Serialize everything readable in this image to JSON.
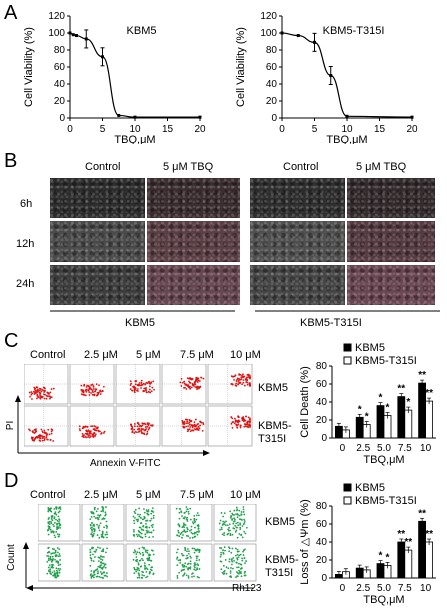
{
  "panels": {
    "A": "A",
    "B": "B",
    "C": "C",
    "D": "D"
  },
  "panelA": {
    "charts": [
      {
        "title": "KBM5",
        "ylabel": "Cell Viability (%)",
        "xlabel": "TBQ,μM",
        "xticks": [
          "0",
          "5",
          "10",
          "15",
          "20"
        ],
        "yticks": [
          "0",
          "20",
          "40",
          "60",
          "80",
          "100",
          "120"
        ]
      },
      {
        "title": "KBM5-T315I",
        "ylabel": "Cell Viability (%)",
        "xlabel": "TBQ,μM",
        "xticks": [
          "0",
          "5",
          "10",
          "15",
          "20"
        ],
        "yticks": [
          "0",
          "20",
          "40",
          "60",
          "80",
          "100",
          "120"
        ]
      }
    ]
  },
  "panelB": {
    "col_headers": [
      "Control",
      "5 μM TBQ",
      "Control",
      "5 μM TBQ"
    ],
    "row_labels": [
      "6h",
      "12h",
      "24h"
    ],
    "group_labels": [
      "KBM5",
      "KBM5-T315I"
    ]
  },
  "panelC": {
    "doses": [
      "Control",
      "2.5 μM",
      "5 μM",
      "7.5 μM",
      "10 μM"
    ],
    "rows": [
      "KBM5",
      "KBM5-\nT315I"
    ],
    "row1": "KBM5",
    "row2a": "KBM5-",
    "row2b": "T315I",
    "yaxis": "PI",
    "xaxis": "Annexin V-FITC"
  },
  "panelD": {
    "doses": [
      "Control",
      "2.5 μM",
      "5 μM",
      "7.5 μM",
      "10 μM"
    ],
    "row1": "KBM5",
    "row2a": "KBM5-",
    "row2b": "T315I",
    "yaxis": "Count",
    "xaxis": "Rh123"
  },
  "chart_data": [
    {
      "type": "line",
      "title": "KBM5",
      "xlabel": "TBQ,μM",
      "ylabel": "Cell Viability (%)",
      "xlim": [
        0,
        20
      ],
      "ylim": [
        0,
        120
      ],
      "x": [
        0,
        0.5,
        1,
        2.5,
        5,
        7.5,
        10,
        20
      ],
      "values": [
        100,
        98,
        97,
        93,
        72,
        3,
        1,
        1
      ]
    },
    {
      "type": "line",
      "title": "KBM5-T315I",
      "xlabel": "TBQ,μM",
      "ylabel": "Cell Viability (%)",
      "xlim": [
        0,
        20
      ],
      "ylim": [
        0,
        120
      ],
      "x": [
        0,
        2.5,
        5,
        7.5,
        10,
        20
      ],
      "values": [
        100,
        97,
        89,
        50,
        2,
        1
      ]
    },
    {
      "type": "bar",
      "xlabel": "TBQ,μM",
      "ylabel": "Cell Death (%)",
      "categories": [
        "0",
        "2.5",
        "5.0",
        "7.5",
        "10"
      ],
      "ylim": [
        0,
        80
      ],
      "yticks": [
        "0",
        "20",
        "40",
        "60",
        "80"
      ],
      "series": [
        {
          "name": "KBM5",
          "values": [
            13,
            23,
            36,
            46,
            61
          ],
          "stars": [
            "",
            "*",
            "*",
            "**",
            "**"
          ]
        },
        {
          "name": "KBM5-T315I",
          "values": [
            9,
            15,
            25,
            31,
            41
          ],
          "stars": [
            "",
            "*",
            "*",
            "*",
            "**"
          ]
        }
      ],
      "legend": "top-right"
    },
    {
      "type": "bar",
      "xlabel": "TBQ,μM",
      "ylabel": "Loss of △Ψm (%)",
      "categories": [
        "0",
        "2.5",
        "5.0",
        "7.5",
        "10"
      ],
      "ylim": [
        0,
        80
      ],
      "yticks": [
        "0",
        "20",
        "40",
        "60",
        "80"
      ],
      "series": [
        {
          "name": "KBM5",
          "values": [
            4,
            11,
            16,
            40,
            63
          ],
          "stars": [
            "",
            "",
            "*",
            "**",
            "**"
          ]
        },
        {
          "name": "KBM5-T315I",
          "values": [
            7,
            9,
            14,
            31,
            40
          ],
          "stars": [
            "",
            "",
            "*",
            "**",
            "**"
          ]
        }
      ],
      "legend": "top-right"
    }
  ]
}
